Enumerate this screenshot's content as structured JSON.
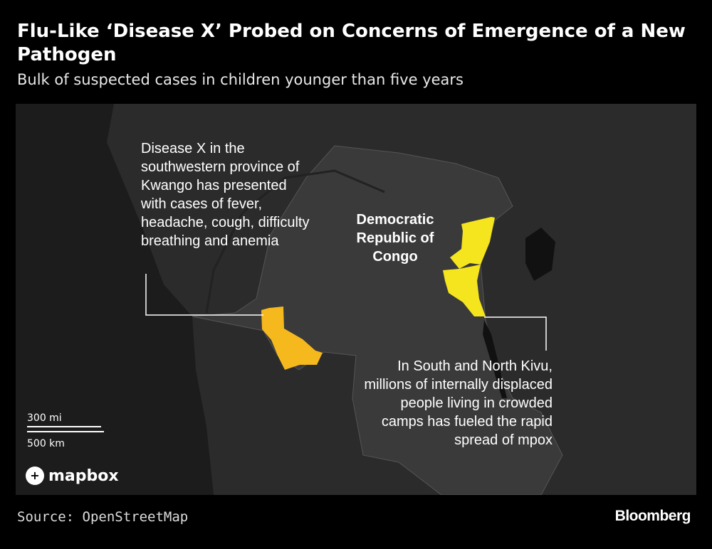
{
  "header": {
    "title": "Flu-Like ‘Disease X’ Probed on Concerns of Emergence of a New Pathogen",
    "subtitle": "Bulk of suspected cases in children younger than five years"
  },
  "map": {
    "country_label": "Democratic Republic of Congo",
    "annotations": [
      {
        "region": "Kwango",
        "text": "Disease X in the southwestern province of Kwango has presented with cases of fever, headache, cough, difficulty breathing and anemia",
        "color": "#f5b91e"
      },
      {
        "region": "South and North Kivu",
        "text": "In South and North Kivu, millions of internally displaced people living in crowded camps has fueled the rapid spread of mpox",
        "color": "#f5e51e"
      }
    ],
    "scale": {
      "miles": "300 mi",
      "km": "500 km"
    },
    "attribution": "mapbox"
  },
  "footer": {
    "source": "Source: OpenStreetMap",
    "brand": "Bloomberg"
  }
}
